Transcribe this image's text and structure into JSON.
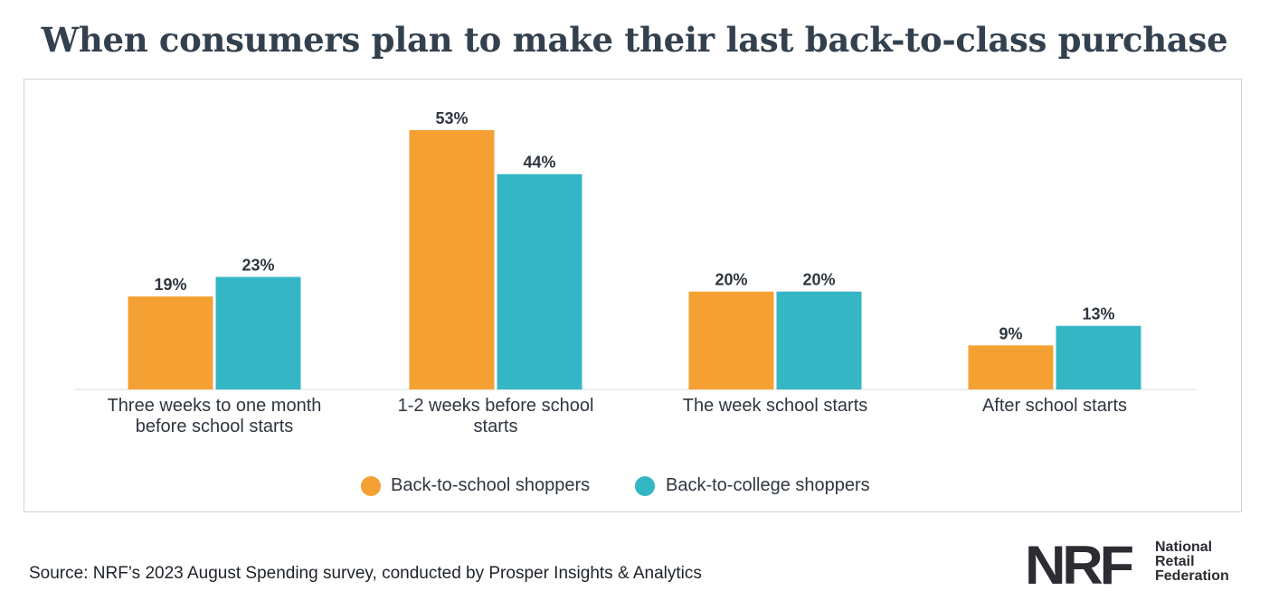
{
  "title": "When consumers plan to make their last back-to-class purchase",
  "chart_data": {
    "type": "bar",
    "title": "When consumers plan to make their last back-to-class purchase",
    "categories": [
      [
        "Three weeks to one month",
        "before school starts"
      ],
      [
        "1-2 weeks before school",
        "starts"
      ],
      [
        "The week school starts"
      ],
      [
        "After school starts"
      ]
    ],
    "series": [
      {
        "name": "Back-to-school shoppers",
        "color": "#f5a033",
        "values": [
          19,
          53,
          20,
          9
        ],
        "labels": [
          "19%",
          "53%",
          "20%",
          "9%"
        ]
      },
      {
        "name": "Back-to-college shoppers",
        "color": "#35b6c5",
        "values": [
          23,
          44,
          20,
          13
        ],
        "labels": [
          "23%",
          "44%",
          "20%",
          "13%"
        ]
      }
    ],
    "ylim": [
      0,
      53
    ],
    "xlabel": "",
    "ylabel": "",
    "grid": false,
    "legend": "bottom-center"
  },
  "source": "Source: NRF’s 2023 August Spending survey, conducted by Prosper Insights & Analytics",
  "logo": {
    "mark": "NRF",
    "name_lines": [
      "National",
      "Retail",
      "Federation"
    ]
  }
}
